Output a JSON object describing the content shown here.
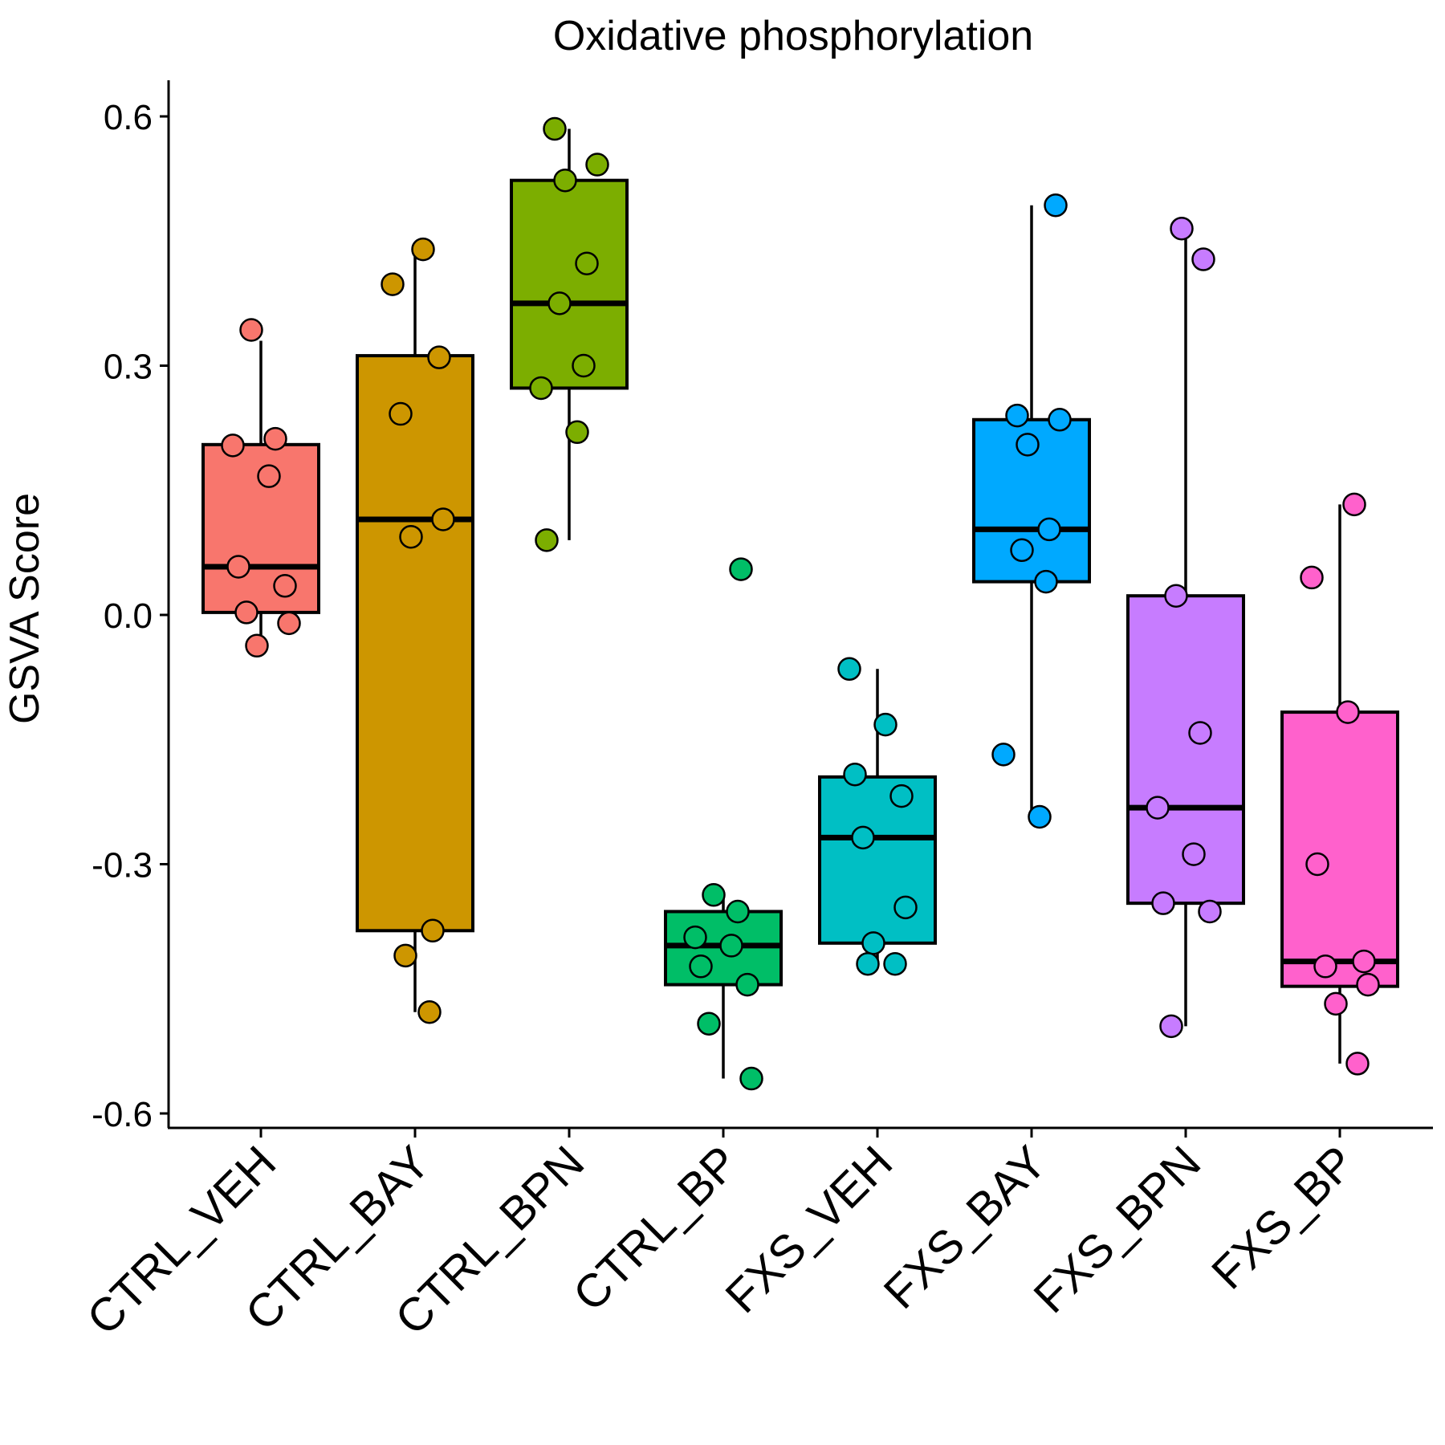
{
  "chart_data": {
    "type": "box",
    "title": "Oxidative phosphorylation",
    "xlabel": "",
    "ylabel": "GSVA Score",
    "ylim": [
      -0.63,
      0.64
    ],
    "yticks": [
      0.6,
      0.3,
      0.0,
      -0.3,
      -0.6
    ],
    "ytick_labels": [
      "0.6",
      "0.3",
      "0.0",
      "-0.3",
      "-0.6"
    ],
    "legend": "none",
    "grid": false,
    "categories": [
      "CTRL_VEH",
      "CTRL_BAY",
      "CTRL_BPN",
      "CTRL_BP",
      "FXS_VEH",
      "FXS_BAY",
      "FXS_BPN",
      "FXS_BP"
    ],
    "colors": [
      "#F8766D",
      "#CD9600",
      "#7CAE00",
      "#00BE67",
      "#00BFC4",
      "#00A9FF",
      "#C77CFF",
      "#FF61CC"
    ],
    "boxes": [
      {
        "q1": 0.003,
        "median": 0.058,
        "q3": 0.205,
        "whisker_low": -0.037,
        "whisker_high": 0.33
      },
      {
        "q1": -0.38,
        "median": 0.115,
        "q3": 0.312,
        "whisker_low": -0.478,
        "whisker_high": 0.44
      },
      {
        "q1": 0.273,
        "median": 0.375,
        "q3": 0.523,
        "whisker_low": 0.09,
        "whisker_high": 0.585
      },
      {
        "q1": -0.445,
        "median": -0.398,
        "q3": -0.357,
        "whisker_low": -0.558,
        "whisker_high": -0.337
      },
      {
        "q1": -0.395,
        "median": -0.268,
        "q3": -0.195,
        "whisker_low": -0.42,
        "whisker_high": -0.065
      },
      {
        "q1": 0.04,
        "median": 0.103,
        "q3": 0.235,
        "whisker_low": -0.243,
        "whisker_high": 0.493
      },
      {
        "q1": -0.347,
        "median": -0.232,
        "q3": 0.023,
        "whisker_low": -0.495,
        "whisker_high": 0.465
      },
      {
        "q1": -0.447,
        "median": -0.417,
        "q3": -0.117,
        "whisker_low": -0.54,
        "whisker_high": 0.133
      }
    ],
    "points": [
      [
        0.343,
        0.212,
        0.204,
        0.167,
        0.058,
        0.035,
        0.003,
        -0.01,
        -0.037
      ],
      [
        0.44,
        0.398,
        0.31,
        0.242,
        0.115,
        0.094,
        -0.38,
        -0.41,
        -0.478
      ],
      [
        0.585,
        0.542,
        0.523,
        0.423,
        0.375,
        0.3,
        0.273,
        0.22,
        0.09
      ],
      [
        0.055,
        -0.337,
        -0.357,
        -0.388,
        -0.398,
        -0.423,
        -0.445,
        -0.492,
        -0.558
      ],
      [
        -0.065,
        -0.132,
        -0.192,
        -0.218,
        -0.268,
        -0.352,
        -0.395,
        -0.42,
        -0.42
      ],
      [
        0.493,
        0.24,
        0.235,
        0.205,
        0.103,
        0.078,
        0.04,
        -0.168,
        -0.243
      ],
      [
        0.465,
        0.428,
        0.023,
        -0.142,
        -0.232,
        -0.288,
        -0.347,
        -0.357,
        -0.495
      ],
      [
        0.133,
        0.045,
        -0.117,
        -0.3,
        -0.417,
        -0.423,
        -0.445,
        -0.468,
        -0.54
      ]
    ]
  }
}
